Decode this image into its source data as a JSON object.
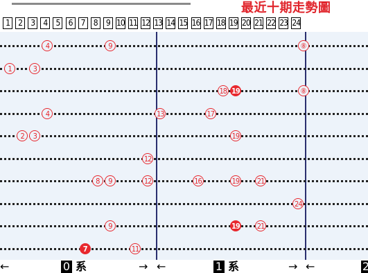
{
  "header": {
    "title": "最近十期走勢圖"
  },
  "number_boxes": [
    "1",
    "2",
    "3",
    "4",
    "5",
    "6",
    "7",
    "8",
    "9",
    "10",
    "11",
    "12",
    "13",
    "14",
    "15",
    "16",
    "17",
    "18",
    "19",
    "20",
    "21",
    "22",
    "23",
    "24"
  ],
  "draws": [
    {
      "numbers": [
        {
          "n": "4"
        },
        {
          "n": "9"
        },
        {
          "n": "⑧"
        }
      ]
    },
    {
      "numbers": [
        {
          "n": "1"
        },
        {
          "n": "3"
        }
      ]
    },
    {
      "numbers": [
        {
          "n": "18"
        },
        {
          "n": "19",
          "filled": true
        },
        {
          "n": "⑧"
        }
      ]
    },
    {
      "numbers": [
        {
          "n": "4"
        },
        {
          "n": "13"
        },
        {
          "n": "17"
        }
      ]
    },
    {
      "numbers": [
        {
          "n": "2"
        },
        {
          "n": "3"
        },
        {
          "n": "19"
        }
      ]
    },
    {
      "numbers": [
        {
          "n": "12"
        }
      ]
    },
    {
      "numbers": [
        {
          "n": "8"
        },
        {
          "n": "9"
        },
        {
          "n": "12"
        },
        {
          "n": "16"
        },
        {
          "n": "19"
        },
        {
          "n": "21"
        }
      ]
    },
    {
      "numbers": [
        {
          "n": "24"
        }
      ]
    },
    {
      "numbers": [
        {
          "n": "9"
        },
        {
          "n": "19",
          "filled": true
        },
        {
          "n": "21"
        }
      ]
    },
    {
      "numbers": [
        {
          "n": "7",
          "filled": true
        },
        {
          "n": "11"
        }
      ]
    }
  ],
  "series_labels": [
    {
      "digit": "0",
      "text": "系"
    },
    {
      "digit": "1",
      "text": "系"
    },
    {
      "digit": "2",
      "text": ""
    }
  ],
  "arrows": {
    "left": "←",
    "right": "→"
  },
  "colors": {
    "accent": "#e8282e",
    "divider": "#2a2f6e",
    "panel": "#edf3fa"
  }
}
